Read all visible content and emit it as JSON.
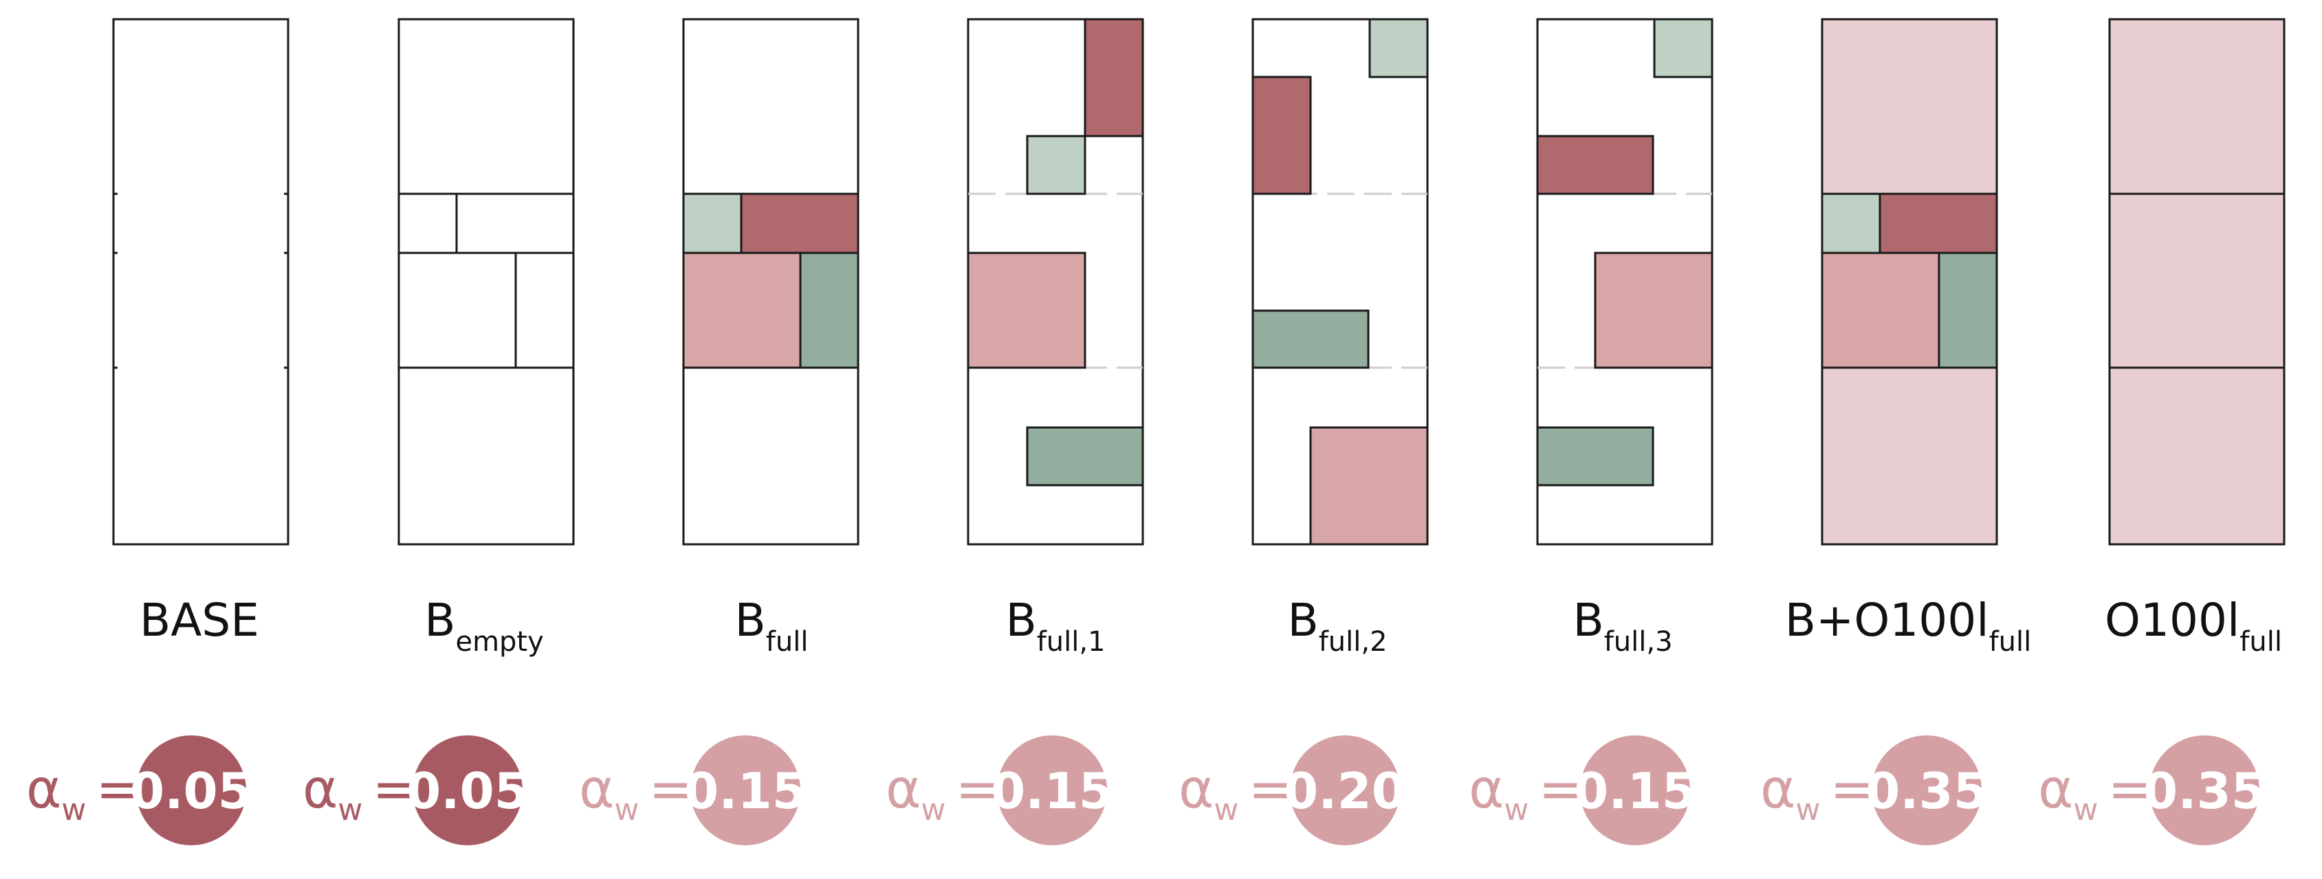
{
  "colors": {
    "outline": "#1a1a1a",
    "dark_red": "#b06a6e",
    "light_red": "#d8a6a7",
    "pale_red": "#e8ced1",
    "light_green": "#bfd1c4",
    "dark_green": "#93ad9f",
    "dash": "#cccccc",
    "strong_badge": "#a85a62",
    "soft_badge": "#d4a0a4"
  },
  "panels": [
    {
      "id": "base",
      "label_main": "BASE",
      "label_sub": "",
      "aw_symbol": "α",
      "aw_sub": "w",
      "aw_eq": "=",
      "value": "0.05",
      "emphasis": "strong"
    },
    {
      "id": "b-empty",
      "label_main": "B",
      "label_sub": "empty",
      "aw_symbol": "α",
      "aw_sub": "w",
      "aw_eq": "=",
      "value": "0.05",
      "emphasis": "strong"
    },
    {
      "id": "b-full",
      "label_main": "B",
      "label_sub": "full",
      "aw_symbol": "α",
      "aw_sub": "w",
      "aw_eq": "=",
      "value": "0.15",
      "emphasis": "soft"
    },
    {
      "id": "b-full-1",
      "label_main": "B",
      "label_sub": "full,1",
      "aw_symbol": "α",
      "aw_sub": "w",
      "aw_eq": "=",
      "value": "0.15",
      "emphasis": "soft"
    },
    {
      "id": "b-full-2",
      "label_main": "B",
      "label_sub": "full,2",
      "aw_symbol": "α",
      "aw_sub": "w",
      "aw_eq": "=",
      "value": "0.20",
      "emphasis": "soft"
    },
    {
      "id": "b-full-3",
      "label_main": "B",
      "label_sub": "full,3",
      "aw_symbol": "α",
      "aw_sub": "w",
      "aw_eq": "=",
      "value": "0.15",
      "emphasis": "soft"
    },
    {
      "id": "b-o100l",
      "label_main": "B+O100l",
      "label_sub": "full",
      "aw_symbol": "α",
      "aw_sub": "w",
      "aw_eq": "=",
      "value": "0.35",
      "emphasis": "soft"
    },
    {
      "id": "o100l",
      "label_main": "O100l",
      "label_sub": "full",
      "aw_symbol": "α",
      "aw_sub": "w",
      "aw_eq": "=",
      "value": "0.35",
      "emphasis": "soft"
    }
  ]
}
